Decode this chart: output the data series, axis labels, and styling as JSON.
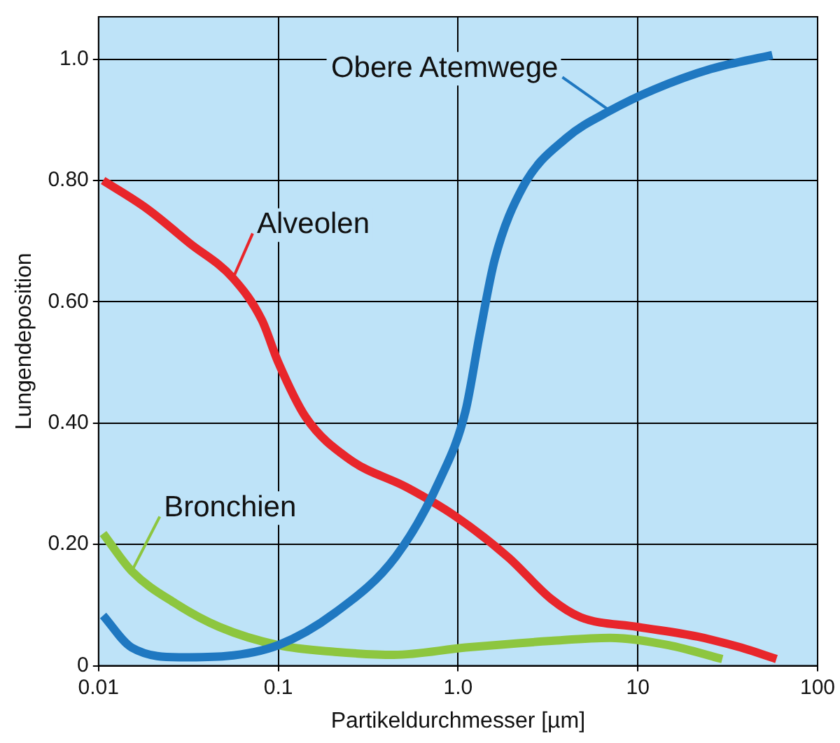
{
  "chart_data": {
    "type": "line",
    "xlabel": "Partikeldurchmesser [µm]",
    "ylabel": "Lungendeposition",
    "log": "x",
    "grid": true,
    "legend": false,
    "marker": "none",
    "line_style": "solid",
    "xlim": [
      0.01,
      100
    ],
    "xticks": [
      0.01,
      0.1,
      {
        "value": 1,
        "label": "1.0"
      },
      10,
      100
    ],
    "ylim": [
      0,
      1.07
    ],
    "yticks": [
      0,
      {
        "value": 0.2,
        "label": "0.20"
      },
      {
        "value": 0.4,
        "label": "0.40"
      },
      {
        "value": 0.6,
        "label": "0.60"
      },
      {
        "value": 0.8,
        "label": "0.80"
      },
      {
        "value": 1,
        "label": "1.0"
      }
    ],
    "series": [
      {
        "name": "Obere Atemwege",
        "color": "#1f78c1",
        "x": [
          0.0106,
          0.0153,
          0.0293,
          0.051,
          0.1,
          0.206,
          0.45,
          0.79,
          1.1,
          1.32,
          1.6,
          2.3,
          4.0,
          7.0,
          12.3,
          25.5,
          56
        ],
        "values": [
          0.083,
          0.03,
          0.014,
          0.016,
          0.034,
          0.087,
          0.18,
          0.306,
          0.42,
          0.547,
          0.67,
          0.79,
          0.87,
          0.915,
          0.95,
          0.984,
          1.007
        ]
      },
      {
        "name": "Alveolen",
        "color": "#e8262b",
        "x": [
          0.0106,
          0.0185,
          0.032,
          0.056,
          0.081,
          0.1,
          0.142,
          0.25,
          0.52,
          0.95,
          1.9,
          3.3,
          4.8,
          10,
          21.5,
          37.5,
          59
        ],
        "values": [
          0.8,
          0.754,
          0.697,
          0.639,
          0.57,
          0.5,
          0.41,
          0.34,
          0.294,
          0.248,
          0.179,
          0.11,
          0.08,
          0.064,
          0.048,
          0.03,
          0.011
        ]
      },
      {
        "name": "Bronchien",
        "color": "#8dc63f",
        "x": [
          0.0106,
          0.0153,
          0.0267,
          0.047,
          0.1,
          0.206,
          0.44,
          1.1,
          3.3,
          7.0,
          14.8,
          29.5
        ],
        "values": [
          0.218,
          0.156,
          0.103,
          0.064,
          0.034,
          0.023,
          0.018,
          0.03,
          0.041,
          0.046,
          0.034,
          0.011
        ]
      }
    ]
  }
}
